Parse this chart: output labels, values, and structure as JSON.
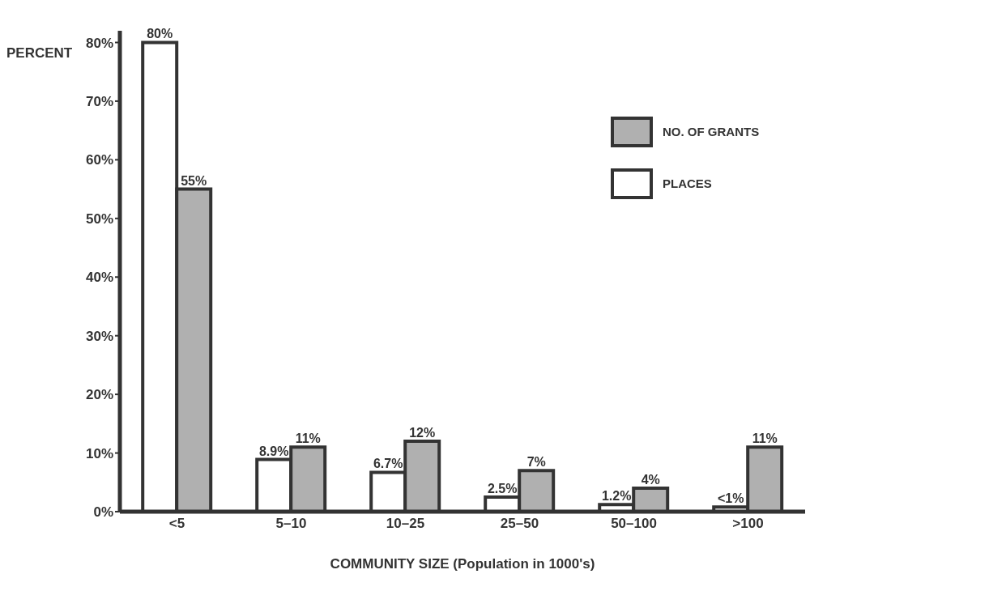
{
  "chart_data": {
    "type": "bar",
    "xlabel": "COMMUNITY SIZE (Population in 1000's)",
    "ylabel": "PERCENT",
    "categories": [
      "<5",
      "5–10",
      "10–25",
      "25–50",
      "50–100",
      ">100"
    ],
    "series": [
      {
        "name": "PLACES",
        "color": "#ffffff",
        "values": [
          80,
          8.9,
          6.7,
          2.5,
          1.2,
          0.8
        ],
        "value_labels": [
          "80%",
          "8.9%",
          "6.7%",
          "2.5%",
          "1.2%",
          "<1%"
        ]
      },
      {
        "name": "NO. OF GRANTS",
        "color": "#b0b0b0",
        "values": [
          55,
          11,
          12,
          7,
          4,
          11
        ],
        "value_labels": [
          "55%",
          "11%",
          "12%",
          "7%",
          "4%",
          "11%"
        ]
      }
    ],
    "ylim": [
      0,
      82
    ],
    "yticks": [
      {
        "value": 0,
        "label": "0%"
      },
      {
        "value": 10,
        "label": "10%"
      },
      {
        "value": 20,
        "label": "20%"
      },
      {
        "value": 30,
        "label": "30%"
      },
      {
        "value": 40,
        "label": "40%"
      },
      {
        "value": 50,
        "label": "50%"
      },
      {
        "value": 60,
        "label": "60%"
      },
      {
        "value": 70,
        "label": "70%"
      },
      {
        "value": 80,
        "label": "80%"
      }
    ],
    "grid": false,
    "legend": "top right"
  }
}
